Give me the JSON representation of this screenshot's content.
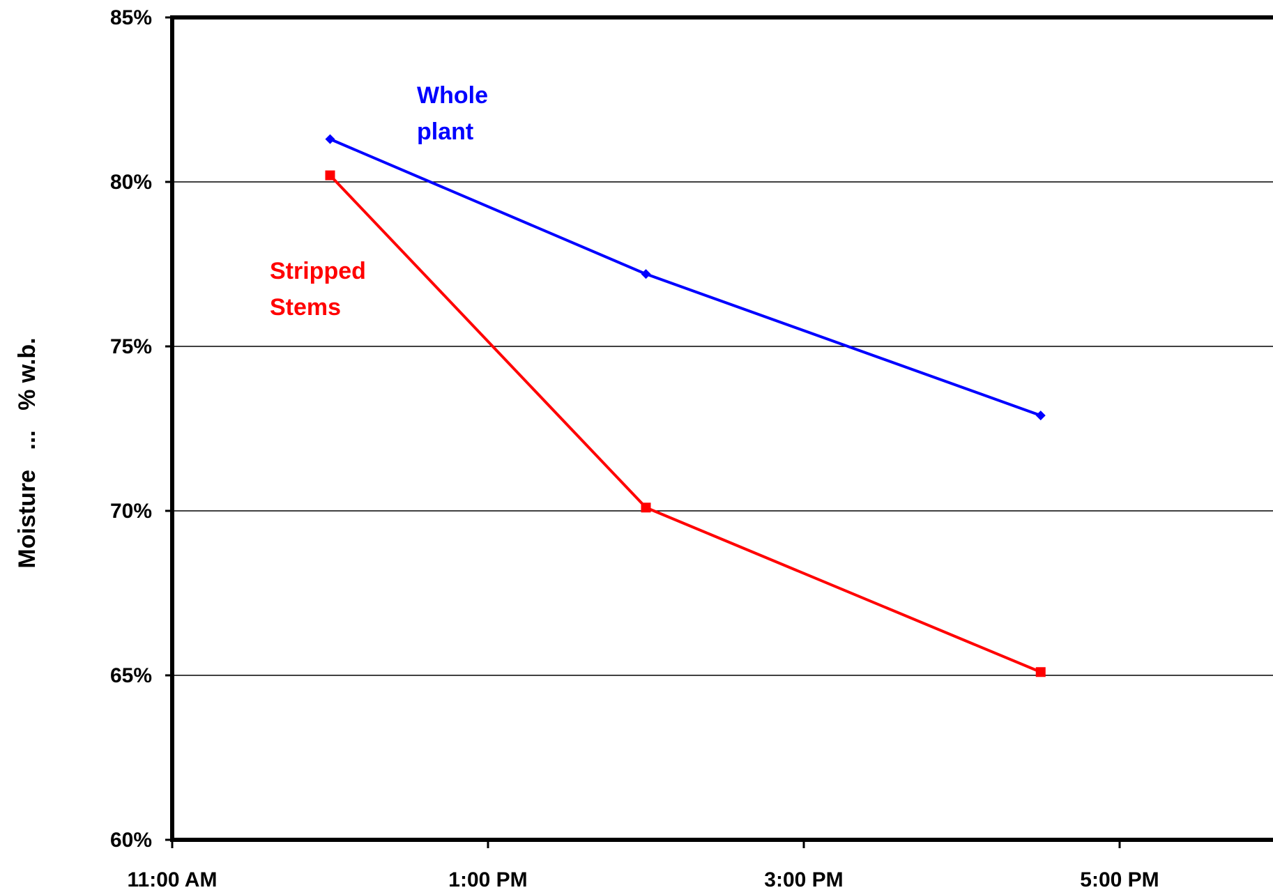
{
  "chart_data": {
    "type": "line",
    "title": "",
    "xlabel": "",
    "ylabel": "Moisture   ...   % w.b.",
    "x_ticks": [
      "11:00 AM",
      "1:00 PM",
      "3:00 PM",
      "5:00 PM"
    ],
    "x_tick_hours": [
      11,
      13,
      15,
      17
    ],
    "xlim_hours": [
      11,
      18.7
    ],
    "y_ticks": [
      "60%",
      "65%",
      "70%",
      "75%",
      "80%",
      "85%"
    ],
    "y_tick_values": [
      60,
      65,
      70,
      75,
      80,
      85
    ],
    "ylim": [
      60,
      85
    ],
    "grid": "horizontal",
    "legend": "inline labels",
    "series": [
      {
        "name": "Whole plant",
        "label_lines": [
          "Whole",
          "plant"
        ],
        "color": "#0000ff",
        "marker": "diamond",
        "x_hours": [
          12,
          14,
          16.5
        ],
        "values": [
          81.3,
          77.2,
          72.9
        ]
      },
      {
        "name": "Stripped Stems",
        "label_lines": [
          "Stripped",
          "Stems"
        ],
        "color": "#ff0000",
        "marker": "square",
        "x_hours": [
          12,
          14,
          16.5
        ],
        "values": [
          80.2,
          70.1,
          65.1
        ]
      }
    ]
  }
}
